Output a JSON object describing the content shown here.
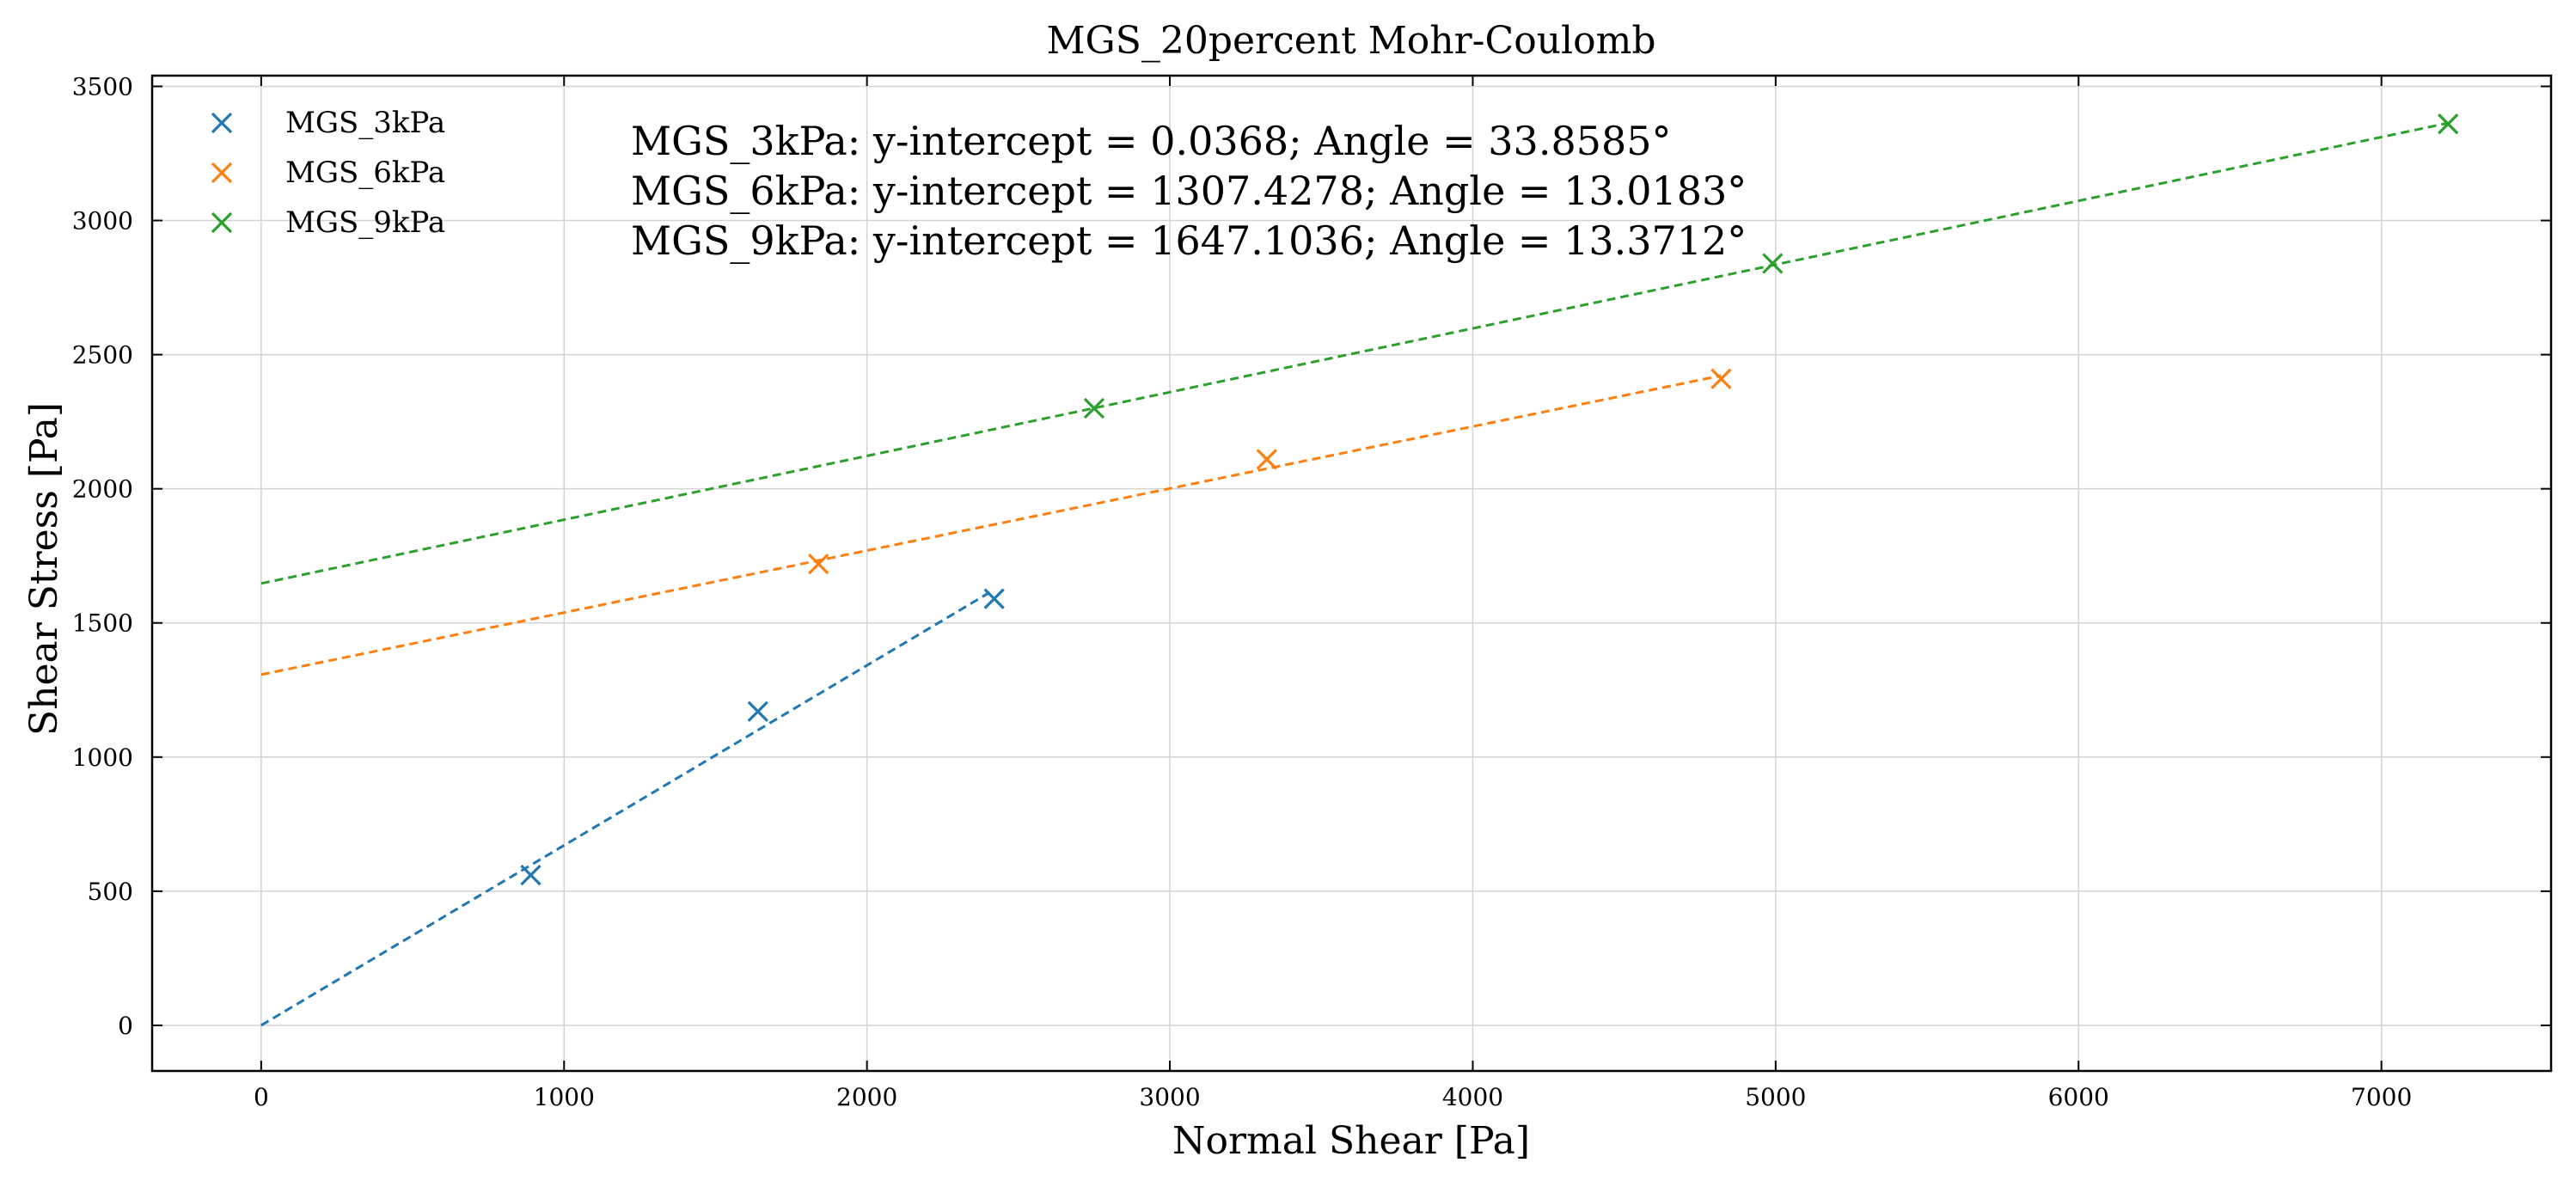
{
  "chart_data": {
    "type": "scatter",
    "title": "MGS_20percent Mohr-Coulomb",
    "xlabel": "Normal Shear [Pa]",
    "ylabel": "Shear Stress [Pa]",
    "xlim": [
      -360,
      7560
    ],
    "ylim": [
      -170,
      3540
    ],
    "xticks": [
      0,
      1000,
      2000,
      3000,
      4000,
      5000,
      6000,
      7000
    ],
    "yticks": [
      0,
      500,
      1000,
      1500,
      2000,
      2500,
      3000,
      3500
    ],
    "grid": true,
    "legend_position": "top-left",
    "series": [
      {
        "name": "MGS_3kPa",
        "color": "#1f77b4",
        "marker": "x",
        "x": [
          890,
          1640,
          2420
        ],
        "y": [
          560,
          1170,
          1590
        ],
        "fit": {
          "intercept": 0.0368,
          "angle_deg": 33.8585,
          "x_range": [
            0,
            2420
          ]
        }
      },
      {
        "name": "MGS_6kPa",
        "color": "#ff7f0e",
        "marker": "x",
        "x": [
          1840,
          3320,
          4820
        ],
        "y": [
          1720,
          2110,
          2410
        ],
        "fit": {
          "intercept": 1307.4278,
          "angle_deg": 13.0183,
          "x_range": [
            0,
            4820
          ]
        }
      },
      {
        "name": "MGS_9kPa",
        "color": "#2ca02c",
        "marker": "x",
        "x": [
          2750,
          4990,
          7220
        ],
        "y": [
          2300,
          2840,
          3360
        ],
        "fit": {
          "intercept": 1647.1036,
          "angle_deg": 13.3712,
          "x_range": [
            0,
            7220
          ]
        }
      }
    ],
    "annotations": [
      "MGS_3kPa: y-intercept = 0.0368; Angle = 33.8585°",
      "MGS_6kPa: y-intercept = 1307.4278; Angle = 13.0183°",
      "MGS_9kPa: y-intercept = 1647.1036; Angle = 13.3712°"
    ]
  }
}
